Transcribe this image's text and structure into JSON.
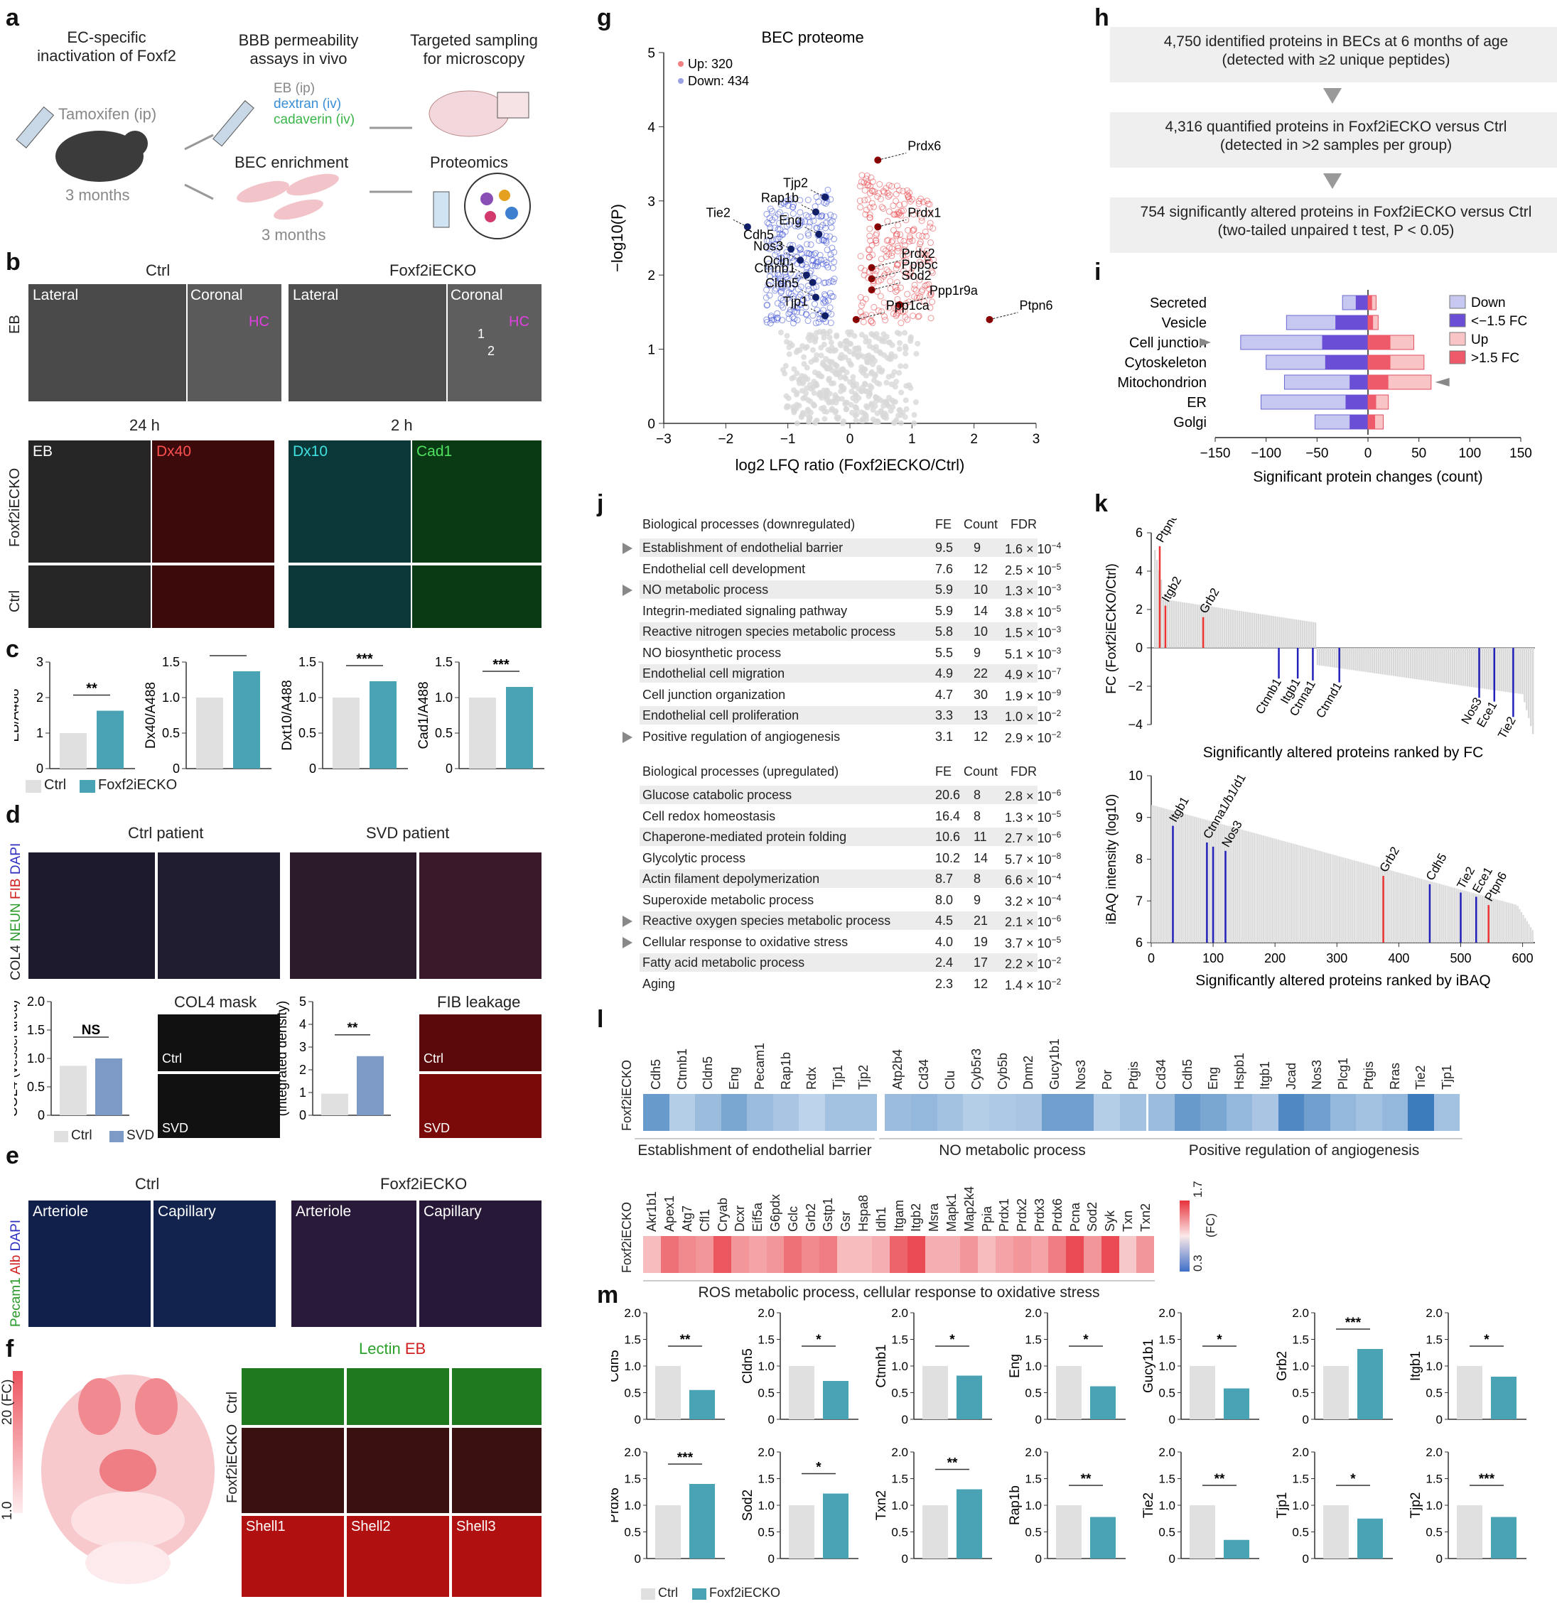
{
  "panels": {
    "a": {
      "letter": "a",
      "col1": {
        "title": "EC-specific\ninactivation of Foxf2",
        "drug": "Tamoxifen (ip)",
        "age": "3 months"
      },
      "col2": {
        "title": "BBB permeability\nassays in vivo",
        "eb": "EB (ip)",
        "dextran": "dextran (iv)",
        "cadaverin": "cadaverin (iv)",
        "enrich": "BEC enrichment",
        "age": "3 months"
      },
      "col3": {
        "title": "Targeted sampling\nfor microscopy",
        "proteomics": "Proteomics"
      }
    },
    "b": {
      "letter": "b",
      "ctrl": "Ctrl",
      "ko": "Foxf2iECKO",
      "lateral": "Lateral",
      "coronal": "Coronal",
      "hc": "HC",
      "eb": "EB",
      "t24": "24 h",
      "t2": "2 h",
      "channels": [
        "EB",
        "Dx40",
        "Dx10",
        "Cad1"
      ],
      "row_ko": "Foxf2iECKO",
      "row_ctrl": "Ctrl",
      "marks": [
        "1",
        "2"
      ]
    },
    "c": {
      "letter": "c",
      "charts": [
        {
          "ylabel": "EB/A488",
          "ctrl": 1.0,
          "ko": 1.63,
          "sig": "**",
          "ymax": 3,
          "ticks": [
            "0",
            "1",
            "2",
            "3"
          ]
        },
        {
          "ylabel": "Dx40/A488",
          "ctrl": 1.0,
          "ko": 1.37,
          "sig": "**",
          "ymax": 1.5,
          "ticks": [
            "0",
            "0.5",
            "1.0",
            "1.5"
          ]
        },
        {
          "ylabel": "Dxt10/A488",
          "ctrl": 1.0,
          "ko": 1.23,
          "sig": "***",
          "ymax": 1.5,
          "ticks": [
            "0",
            "0.5",
            "1.0",
            "1.5"
          ]
        },
        {
          "ylabel": "Cad1/A488",
          "ctrl": 1.0,
          "ko": 1.15,
          "sig": "***",
          "ymax": 1.5,
          "ticks": [
            "0",
            "0.5",
            "1.0",
            "1.5"
          ]
        }
      ],
      "legend_ctrl": "Ctrl",
      "legend_ko": "Foxf2iECKO"
    },
    "d": {
      "letter": "d",
      "ctrl_patient": "Ctrl patient",
      "svd_patient": "SVD patient",
      "stain_col4": "COL4",
      "stain_neun": "NEUN",
      "stain_fib": "FIB",
      "stain_dapi": "DAPI",
      "col4_mask": "COL4 mask",
      "fib_leakage": "FIB leakage",
      "mask_ctrl": "Ctrl",
      "mask_svd": "SVD",
      "chart1": {
        "ylabel": "COL4 (vessel area)",
        "ctrl": 0.87,
        "svd": 1.0,
        "sig": "NS",
        "ticks": [
          "0",
          "0.5",
          "1.0",
          "1.5",
          "2.0"
        ]
      },
      "chart2": {
        "ylabel": "FIB leakage\n(integrated density)",
        "ctrl": 0.95,
        "svd": 2.6,
        "sig": "**",
        "ticks": [
          "0",
          "1",
          "2",
          "3",
          "4",
          "5"
        ]
      },
      "legend_ctrl": "Ctrl",
      "legend_svd": "SVD"
    },
    "e": {
      "letter": "e",
      "ctrl": "Ctrl",
      "ko": "Foxf2iECKO",
      "arteriole": "Arteriole",
      "capillary": "Capillary",
      "stain_pecam": "Pecam1",
      "stain_alb": "Alb",
      "stain_dapi": "DAPI"
    },
    "f": {
      "letter": "f",
      "title_lectin": "Lectin",
      "title_eb": "EB",
      "scale_top": "20 (FC)",
      "scale_bottom": "1.0",
      "row_ctrl": "Ctrl",
      "row_ko": "Foxf2iECKO",
      "shells": [
        "Shell1",
        "Shell2",
        "Shell3"
      ]
    },
    "g": {
      "letter": "g",
      "title": "BEC proteome",
      "up": "Up: 320",
      "down": "Down: 434",
      "xlabel": "log2 LFQ ratio (Foxf2iECKO/Ctrl)",
      "ylabel": "−log10(P)",
      "down_labels": [
        "Tjp2",
        "Rap1b",
        "Tie2",
        "Eng",
        "Cdh5",
        "Nos3",
        "Ocln",
        "Ctnnb1",
        "Cldn5",
        "Tjp1"
      ],
      "up_labels": [
        "Prdx6",
        "Prdx1",
        "Prdx2",
        "Ppp5c",
        "Sod2",
        "Ppp1r9a",
        "Ptpn6",
        "Ppp1ca"
      ]
    },
    "h": {
      "letter": "h",
      "box1_l1": "4,750 identified proteins in BECs at 6 months of age",
      "box1_l2": "(detected with ≥2 unique peptides)",
      "box2_l1": "4,316 quantified proteins in Foxf2iECKO versus Ctrl",
      "box2_l2": "(detected in >2 samples per group)",
      "box3_l1": "754 significantly altered proteins in Foxf2iECKO versus Ctrl",
      "box3_l2": "(two-tailed unpaired t test, P < 0.05)"
    },
    "i": {
      "letter": "i",
      "xlabel": "Significant protein changes (count)",
      "legend": [
        "Down",
        "<−1.5 FC",
        "Up",
        ">1.5 FC"
      ]
    },
    "j": {
      "letter": "j",
      "down_header": "Biological processes (downregulated)",
      "up_header": "Biological processes (upregulated)",
      "col_fe": "FE",
      "col_count": "Count",
      "col_fdr": "FDR"
    },
    "k": {
      "letter": "k",
      "top_ylabel": "FC (Foxf2iECKO/Ctrl)",
      "top_xlabel": "Significantly altered proteins ranked by FC",
      "bottom_ylabel": "iBAQ intensity (log10)",
      "bottom_xlabel": "Significantly altered proteins ranked by iBAQ",
      "top_labels": [
        "Ptpn6",
        "Itgb2",
        "Grb2",
        "Ctnnb1",
        "Itgb1",
        "Ctnna1",
        "Ctnnd1",
        "Nos3",
        "Ece1",
        "Tie2"
      ],
      "bottom_labels": [
        "Itgb1",
        "Ctnna1/b1/d1",
        "Nos3",
        "Grb2",
        "Cdh5",
        "Tie2",
        "Ece1",
        "Ptpn6"
      ]
    },
    "l": {
      "letter": "l",
      "row_label": "Foxf2iECKO",
      "group1": "Establishment of endothelial barrier",
      "group2": "NO metabolic process",
      "group3": "Positive regulation of angiogenesis",
      "group4": "ROS metabolic process, cellular response to oxidative stress",
      "scale_top": "1.7",
      "scale_bottom": "0.3",
      "scale_unit": "(FC)"
    },
    "m": {
      "letter": "m",
      "legend_ctrl": "Ctrl",
      "legend_ko": "Foxf2iECKO"
    }
  },
  "chart_data": [
    {
      "type": "scatter",
      "title": "BEC proteome",
      "xlabel": "log2 LFQ ratio (Foxf2iECKO/Ctrl)",
      "ylabel": "−log10(P)",
      "xlim": [
        -3,
        3
      ],
      "ylim": [
        0,
        5
      ],
      "series": [
        {
          "name": "Up: 320",
          "color": "#e8454a"
        },
        {
          "name": "Down: 434",
          "color": "#3a4fd6"
        }
      ],
      "labeled_points": [
        {
          "label": "Tjp2",
          "x": -0.4,
          "y": 3.05
        },
        {
          "label": "Rap1b",
          "x": -0.55,
          "y": 2.85
        },
        {
          "label": "Tie2",
          "x": -1.65,
          "y": 2.65
        },
        {
          "label": "Eng",
          "x": -0.5,
          "y": 2.55
        },
        {
          "label": "Cdh5",
          "x": -0.95,
          "y": 2.35
        },
        {
          "label": "Nos3",
          "x": -0.8,
          "y": 2.2
        },
        {
          "label": "Ocln",
          "x": -0.7,
          "y": 2.0
        },
        {
          "label": "Ctnnb1",
          "x": -0.6,
          "y": 1.9
        },
        {
          "label": "Cldn5",
          "x": -0.55,
          "y": 1.7
        },
        {
          "label": "Tjp1",
          "x": -0.4,
          "y": 1.45
        },
        {
          "label": "Prdx6",
          "x": 0.45,
          "y": 3.55
        },
        {
          "label": "Prdx1",
          "x": 0.45,
          "y": 2.65
        },
        {
          "label": "Prdx2",
          "x": 0.35,
          "y": 2.1
        },
        {
          "label": "Ppp5c",
          "x": 0.35,
          "y": 1.95
        },
        {
          "label": "Sod2",
          "x": 0.35,
          "y": 1.8
        },
        {
          "label": "Ppp1r9a",
          "x": 0.8,
          "y": 1.6
        },
        {
          "label": "Ptpn6",
          "x": 2.25,
          "y": 1.4
        },
        {
          "label": "Ppp1ca",
          "x": 0.1,
          "y": 1.4
        }
      ]
    },
    {
      "type": "bar",
      "title": "",
      "xlabel": "Significant protein changes (count)",
      "xlim": [
        -150,
        150
      ],
      "categories": [
        "Secreted",
        "Vesicle",
        "Cell junction",
        "Cytoskeleton",
        "Mitochondrion",
        "ER",
        "Golgi"
      ],
      "series": [
        {
          "name": "Down",
          "values": [
            -25,
            -80,
            -125,
            -100,
            -82,
            -105,
            -52
          ]
        },
        {
          "name": "<−1.5 FC",
          "values": [
            -12,
            -32,
            -45,
            -42,
            -18,
            -22,
            -18
          ]
        },
        {
          "name": "Up",
          "values": [
            8,
            10,
            45,
            55,
            62,
            20,
            15
          ]
        },
        {
          "name": ">1.5 FC",
          "values": [
            4,
            5,
            22,
            22,
            20,
            8,
            7
          ]
        }
      ]
    },
    {
      "type": "table",
      "title": "Biological processes (downregulated)",
      "columns": [
        "Biological processes (downregulated)",
        "FE",
        "Count",
        "FDR"
      ],
      "rows": [
        {
          "name": "Establishment of endothelial barrier",
          "fe": "9.5",
          "count": "9",
          "fdr": "1.6 × 10",
          "exp": "−4",
          "marked": true
        },
        {
          "name": "Endothelial cell development",
          "fe": "7.6",
          "count": "12",
          "fdr": "2.5 × 10",
          "exp": "−5",
          "marked": false
        },
        {
          "name": "NO metabolic process",
          "fe": "5.9",
          "count": "10",
          "fdr": "1.3 × 10",
          "exp": "−3",
          "marked": true
        },
        {
          "name": "Integrin-mediated signaling pathway",
          "fe": "5.9",
          "count": "14",
          "fdr": "3.8 × 10",
          "exp": "−5",
          "marked": false
        },
        {
          "name": "Reactive nitrogen species metabolic process",
          "fe": "5.8",
          "count": "10",
          "fdr": "1.5 × 10",
          "exp": "−3",
          "marked": false
        },
        {
          "name": "NO biosynthetic process",
          "fe": "5.5",
          "count": "9",
          "fdr": "5.1 × 10",
          "exp": "−3",
          "marked": false
        },
        {
          "name": "Endothelial cell migration",
          "fe": "4.9",
          "count": "22",
          "fdr": "4.9 × 10",
          "exp": "−7",
          "marked": false
        },
        {
          "name": "Cell junction organization",
          "fe": "4.7",
          "count": "30",
          "fdr": "1.9 × 10",
          "exp": "−9",
          "marked": false
        },
        {
          "name": "Endothelial cell proliferation",
          "fe": "3.3",
          "count": "13",
          "fdr": "1.0 × 10",
          "exp": "−2",
          "marked": false
        },
        {
          "name": "Positive regulation of angiogenesis",
          "fe": "3.1",
          "count": "12",
          "fdr": "2.9 × 10",
          "exp": "−2",
          "marked": true
        }
      ]
    },
    {
      "type": "table",
      "title": "Biological processes (upregulated)",
      "columns": [
        "Biological processes (upregulated)",
        "FE",
        "Count",
        "FDR"
      ],
      "rows": [
        {
          "name": "Glucose catabolic process",
          "fe": "20.6",
          "count": "8",
          "fdr": "2.8 × 10",
          "exp": "−6",
          "marked": false
        },
        {
          "name": "Cell redox homeostasis",
          "fe": "16.4",
          "count": "8",
          "fdr": "1.3 × 10",
          "exp": "−5",
          "marked": false
        },
        {
          "name": "Chaperone-mediated protein folding",
          "fe": "10.6",
          "count": "11",
          "fdr": "2.7 × 10",
          "exp": "−6",
          "marked": false
        },
        {
          "name": "Glycolytic process",
          "fe": "10.2",
          "count": "14",
          "fdr": "5.7 × 10",
          "exp": "−8",
          "marked": false
        },
        {
          "name": "Actin filament depolymerization",
          "fe": "8.7",
          "count": "8",
          "fdr": "6.6 × 10",
          "exp": "−4",
          "marked": false
        },
        {
          "name": "Superoxide metabolic process",
          "fe": "8.0",
          "count": "9",
          "fdr": "3.2 × 10",
          "exp": "−4",
          "marked": false
        },
        {
          "name": "Reactive oxygen species metabolic process",
          "fe": "4.5",
          "count": "21",
          "fdr": "2.1 × 10",
          "exp": "−6",
          "marked": true
        },
        {
          "name": "Cellular response to oxidative stress",
          "fe": "4.0",
          "count": "19",
          "fdr": "3.7 × 10",
          "exp": "−5",
          "marked": true
        },
        {
          "name": "Fatty acid metabolic process",
          "fe": "2.4",
          "count": "17",
          "fdr": "2.2 × 10",
          "exp": "−2",
          "marked": false
        },
        {
          "name": "Aging",
          "fe": "2.3",
          "count": "12",
          "fdr": "1.4 × 10",
          "exp": "−2",
          "marked": false
        }
      ]
    },
    {
      "type": "heatmap",
      "title": "",
      "groups": [
        {
          "name": "Establishment of endothelial barrier",
          "genes": [
            "Cdh5",
            "Ctnnb1",
            "Cldn5",
            "Eng",
            "Pecam1",
            "Rap1b",
            "Rdx",
            "Tjp1",
            "Tjp2"
          ],
          "fc": [
            0.55,
            0.85,
            0.75,
            0.62,
            0.75,
            0.8,
            0.88,
            0.78,
            0.78
          ]
        },
        {
          "name": "NO metabolic process",
          "genes": [
            "Atp2b4",
            "Cd34",
            "Clu",
            "Cyb5r3",
            "Cyb5b",
            "Dnm2",
            "Gucy1b1",
            "Nos3",
            "Por",
            "Ptgis"
          ],
          "fc": [
            0.75,
            0.72,
            0.78,
            0.85,
            0.82,
            0.8,
            0.58,
            0.58,
            0.85,
            0.78
          ]
        },
        {
          "name": "Positive regulation of angiogenesis",
          "genes": [
            "Cd34",
            "Cdh5",
            "Eng",
            "Hspb1",
            "Itgb1",
            "Jcad",
            "Nos3",
            "Plcg1",
            "Ptgis",
            "Rras",
            "Tie2",
            "Tjp1"
          ],
          "fc": [
            0.75,
            0.55,
            0.62,
            0.72,
            0.8,
            0.45,
            0.58,
            0.72,
            0.78,
            0.72,
            0.38,
            0.78
          ]
        },
        {
          "name": "ROS metabolic process, cellular response to oxidative stress",
          "genes": [
            "Akr1b1",
            "Apex1",
            "Atg7",
            "Cfl1",
            "Cryab",
            "Dcxr",
            "Eif5a",
            "G6pdx",
            "Gclc",
            "Grb2",
            "Gstp1",
            "Gsr",
            "Hspa8",
            "Idh1",
            "Itgam",
            "Itgb2",
            "Msra",
            "Mapk1",
            "Map2k4",
            "Ppia",
            "Prdx1",
            "Prdx2",
            "Prdx3",
            "Prdx6",
            "Pcna",
            "Sod2",
            "Syk",
            "Txn",
            "Txn2"
          ],
          "fc": [
            1.15,
            1.45,
            1.35,
            1.3,
            1.55,
            1.3,
            1.25,
            1.3,
            1.45,
            1.35,
            1.4,
            1.15,
            1.15,
            1.2,
            1.5,
            1.6,
            1.2,
            1.2,
            1.3,
            1.15,
            1.25,
            1.3,
            1.25,
            1.4,
            1.6,
            1.3,
            1.6,
            1.1,
            1.3
          ]
        }
      ],
      "scale": [
        0.3,
        1.7
      ]
    },
    {
      "type": "bar",
      "title": "",
      "categories": [
        "Ctrl",
        "Foxf2iECKO"
      ],
      "panels": [
        {
          "gene": "Cdh5",
          "ctrl": 1.0,
          "ko": 0.55,
          "sig": "**"
        },
        {
          "gene": "Cldn5",
          "ctrl": 1.0,
          "ko": 0.72,
          "sig": "*"
        },
        {
          "gene": "Ctnnb1",
          "ctrl": 1.0,
          "ko": 0.82,
          "sig": "*"
        },
        {
          "gene": "Eng",
          "ctrl": 1.0,
          "ko": 0.62,
          "sig": "*"
        },
        {
          "gene": "Gucy1b1",
          "ctrl": 1.0,
          "ko": 0.58,
          "sig": "*"
        },
        {
          "gene": "Grb2",
          "ctrl": 1.0,
          "ko": 1.32,
          "sig": "***"
        },
        {
          "gene": "Itgb1",
          "ctrl": 1.0,
          "ko": 0.8,
          "sig": "*"
        },
        {
          "gene": "Prdx6",
          "ctrl": 1.0,
          "ko": 1.4,
          "sig": "***"
        },
        {
          "gene": "Sod2",
          "ctrl": 1.0,
          "ko": 1.22,
          "sig": "*"
        },
        {
          "gene": "Txn2",
          "ctrl": 1.0,
          "ko": 1.3,
          "sig": "**"
        },
        {
          "gene": "Rap1b",
          "ctrl": 1.0,
          "ko": 0.78,
          "sig": "**"
        },
        {
          "gene": "Tie2",
          "ctrl": 1.0,
          "ko": 0.35,
          "sig": "**"
        },
        {
          "gene": "Tjp1",
          "ctrl": 1.0,
          "ko": 0.75,
          "sig": "*"
        },
        {
          "gene": "Tjp2",
          "ctrl": 1.0,
          "ko": 0.78,
          "sig": "***"
        }
      ],
      "ylim": [
        0,
        2.0
      ],
      "ticks": [
        "0",
        "0.5",
        "1.0",
        "1.5",
        "2.0"
      ]
    }
  ],
  "colors": {
    "ctrl": "#e0e0e0",
    "ko": "#4aa3b5",
    "down": "#3a4fd6",
    "up": "#e8454a"
  }
}
